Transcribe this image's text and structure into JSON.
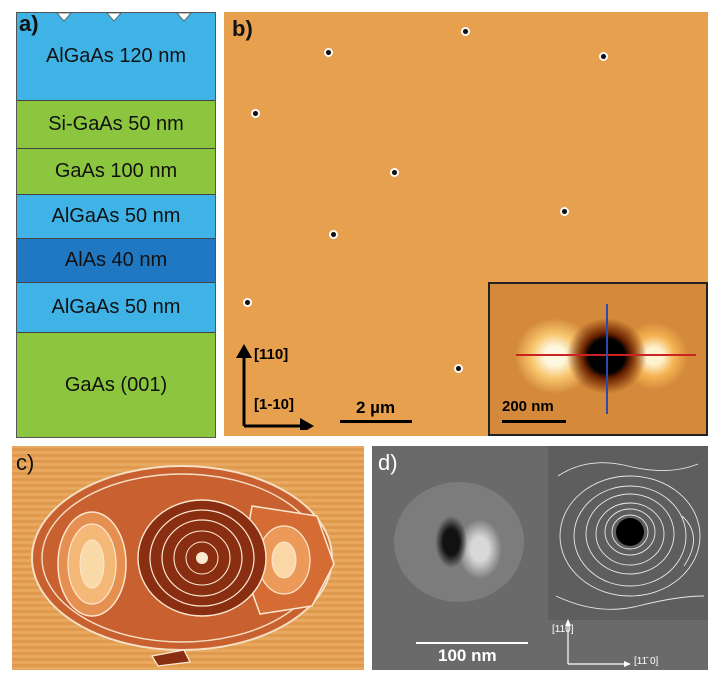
{
  "panel_a": {
    "label": "a)",
    "layers": [
      {
        "text": "AlGaAs  120 nm",
        "color": "#3fb3e6"
      },
      {
        "text": "Si-GaAs 50 nm",
        "color": "#8cc63f"
      },
      {
        "text": "GaAs  100 nm",
        "color": "#8cc63f"
      },
      {
        "text": "AlGaAs  50 nm",
        "color": "#3fb3e6"
      },
      {
        "text": "AlAs  40 nm",
        "color": "#1f78c1"
      },
      {
        "text": "AlGaAs  50 nm",
        "color": "#3fb3e6"
      },
      {
        "text": "GaAs (001)",
        "color": "#8cc63f"
      }
    ]
  },
  "panel_b": {
    "label": "b)",
    "direction_110": "[110]",
    "direction_1m10": "[1-10]",
    "scale": "2 µm",
    "inset_scale": "200 nm"
  },
  "panel_c": {
    "label": "c)"
  },
  "panel_d": {
    "label": "d)",
    "scale": "100 nm",
    "direction_110": "[110]",
    "direction_1m10": "[11̄ 0]"
  }
}
